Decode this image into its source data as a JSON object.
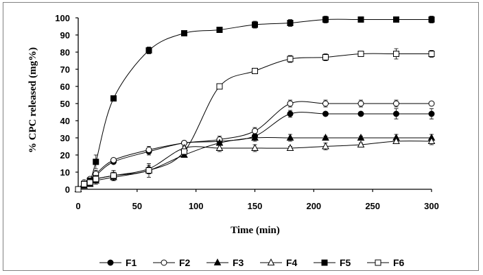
{
  "chart_data": {
    "type": "line",
    "xlabel": "Time (min)",
    "ylabel": "% CPC released (mg%)",
    "xlim": [
      0,
      300
    ],
    "ylim": [
      0,
      100
    ],
    "xticks": [
      0,
      50,
      100,
      150,
      200,
      250,
      300
    ],
    "yticks": [
      0,
      10,
      20,
      30,
      40,
      50,
      60,
      70,
      80,
      90,
      100
    ],
    "grid": false,
    "legend_position": "bottom",
    "series": [
      {
        "name": "F1",
        "marker": "circle",
        "filled": true,
        "x": [
          0,
          5,
          10,
          15,
          30,
          60,
          90,
          120,
          150,
          180,
          210,
          240,
          270,
          300
        ],
        "y": [
          0,
          3,
          5,
          8,
          16,
          22,
          27,
          28,
          31,
          44,
          44,
          44,
          44,
          44
        ],
        "err": [
          0,
          1,
          1,
          2,
          1,
          2,
          1,
          2,
          2,
          2,
          1,
          1,
          3,
          3
        ]
      },
      {
        "name": "F2",
        "marker": "circle",
        "filled": false,
        "x": [
          0,
          5,
          10,
          15,
          30,
          60,
          90,
          120,
          150,
          180,
          210,
          240,
          270,
          300
        ],
        "y": [
          0,
          4,
          6,
          9,
          17,
          23,
          27,
          29,
          34,
          50,
          50,
          50,
          50,
          50
        ],
        "err": [
          0,
          1,
          1,
          2,
          1,
          2,
          1,
          2,
          2,
          2,
          2,
          2,
          2,
          1
        ]
      },
      {
        "name": "F3",
        "marker": "triangle",
        "filled": true,
        "x": [
          0,
          5,
          10,
          15,
          30,
          60,
          90,
          120,
          150,
          180,
          210,
          240,
          270,
          300
        ],
        "y": [
          0,
          2,
          3,
          5,
          7,
          11,
          20,
          27,
          30,
          30,
          30,
          30,
          30,
          30
        ],
        "err": [
          0,
          1,
          1,
          2,
          2,
          2,
          1,
          1,
          2,
          2,
          1,
          1,
          2,
          2
        ]
      },
      {
        "name": "F4",
        "marker": "triangle",
        "filled": false,
        "x": [
          0,
          5,
          10,
          15,
          30,
          60,
          90,
          120,
          150,
          180,
          210,
          240,
          270,
          300
        ],
        "y": [
          0,
          3,
          4,
          6,
          8,
          12,
          24,
          24,
          24,
          24,
          25,
          26,
          28,
          28
        ],
        "err": [
          0,
          1,
          1,
          2,
          2,
          2,
          1,
          2,
          2,
          1,
          2,
          1,
          1,
          2
        ]
      },
      {
        "name": "F5",
        "marker": "square",
        "filled": true,
        "x": [
          0,
          5,
          10,
          15,
          30,
          60,
          90,
          120,
          150,
          180,
          210,
          240,
          270,
          300
        ],
        "y": [
          0,
          3,
          5,
          16,
          53,
          81,
          91,
          93,
          96,
          97,
          99,
          99,
          99,
          99
        ],
        "err": [
          0,
          1,
          1,
          4,
          1,
          2,
          1,
          1,
          2,
          2,
          2,
          1,
          1,
          2
        ]
      },
      {
        "name": "F6",
        "marker": "square",
        "filled": false,
        "x": [
          0,
          5,
          10,
          15,
          30,
          60,
          90,
          120,
          150,
          180,
          210,
          240,
          270,
          300
        ],
        "y": [
          0,
          3,
          4,
          6,
          8,
          11,
          22,
          60,
          69,
          76,
          77,
          79,
          79,
          79
        ],
        "err": [
          0,
          1,
          1,
          2,
          3,
          4,
          1,
          1,
          1,
          2,
          2,
          1,
          3,
          2
        ]
      }
    ]
  }
}
